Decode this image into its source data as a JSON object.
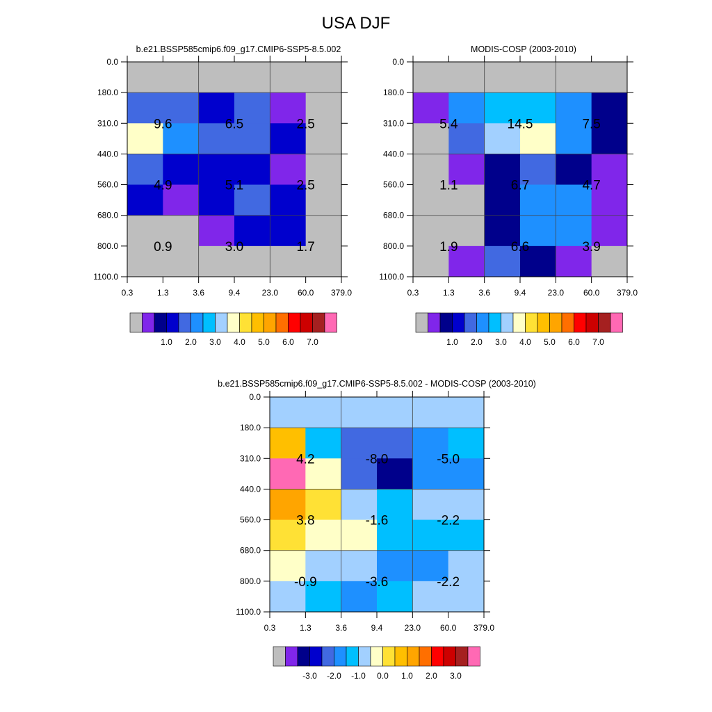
{
  "title": "USA DJF",
  "chart_data": [
    {
      "type": "heatmap",
      "title": "b.e21.BSSP585cmip6.f09_g17.CMIP6-SSP5-8.5.002",
      "x_tick_labels": [
        "0.3",
        "1.3",
        "3.6",
        "9.4",
        "23.0",
        "60.0",
        "379.0"
      ],
      "y_tick_labels": [
        "0.0",
        "180.0",
        "310.0",
        "440.0",
        "560.0",
        "680.0",
        "800.0",
        "1100.0"
      ],
      "cell_color_index": [
        [
          0,
          0,
          0,
          0,
          0,
          0
        ],
        [
          4,
          4,
          3,
          4,
          1,
          0
        ],
        [
          8,
          5,
          4,
          4,
          3,
          0
        ],
        [
          4,
          3,
          3,
          3,
          1,
          0
        ],
        [
          3,
          1,
          3,
          4,
          3,
          0
        ],
        [
          0,
          0,
          1,
          3,
          3,
          0
        ],
        [
          0,
          0,
          0,
          0,
          0,
          0
        ]
      ],
      "box_labels": [
        "9.6",
        "6.5",
        "2.5",
        "4.9",
        "5.1",
        "2.5",
        "0.9",
        "3.0",
        "1.7"
      ],
      "colorbar": {
        "colors": [
          "#bebebe",
          "#8026ea",
          "#00008b",
          "#0000cd",
          "#4169e1",
          "#1e90ff",
          "#00bfff",
          "#a2d0ff",
          "#ffffc8",
          "#ffe135",
          "#ffbf00",
          "#ffa500",
          "#ff6f00",
          "#ff0000",
          "#cd0000",
          "#a52020",
          "#ff69b4"
        ],
        "labels": [
          "1.0",
          "2.0",
          "3.0",
          "4.0",
          "5.0",
          "6.0",
          "7.0"
        ]
      }
    },
    {
      "type": "heatmap",
      "title": "MODIS-COSP (2003-2010)",
      "x_tick_labels": [
        "0.3",
        "1.3",
        "3.6",
        "9.4",
        "23.0",
        "60.0",
        "379.0"
      ],
      "y_tick_labels": [
        "0.0",
        "180.0",
        "310.0",
        "440.0",
        "560.0",
        "680.0",
        "800.0",
        "1100.0"
      ],
      "cell_color_index": [
        [
          0,
          0,
          0,
          0,
          0,
          0
        ],
        [
          1,
          5,
          6,
          6,
          5,
          2
        ],
        [
          0,
          4,
          7,
          8,
          5,
          2
        ],
        [
          0,
          1,
          2,
          4,
          2,
          1
        ],
        [
          0,
          0,
          2,
          5,
          5,
          1
        ],
        [
          0,
          0,
          2,
          5,
          5,
          1
        ],
        [
          0,
          1,
          4,
          2,
          1,
          0
        ]
      ],
      "box_labels": [
        "5.4",
        "14.5",
        "7.5",
        "1.1",
        "6.7",
        "4.7",
        "1.9",
        "6.6",
        "3.9"
      ],
      "colorbar": {
        "colors": [
          "#bebebe",
          "#8026ea",
          "#00008b",
          "#0000cd",
          "#4169e1",
          "#1e90ff",
          "#00bfff",
          "#a2d0ff",
          "#ffffc8",
          "#ffe135",
          "#ffbf00",
          "#ffa500",
          "#ff6f00",
          "#ff0000",
          "#cd0000",
          "#a52020",
          "#ff69b4"
        ],
        "labels": [
          "1.0",
          "2.0",
          "3.0",
          "4.0",
          "5.0",
          "6.0",
          "7.0"
        ]
      }
    },
    {
      "type": "heatmap",
      "title": "b.e21.BSSP585cmip6.f09_g17.CMIP6-SSP5-8.5.002 - MODIS-COSP (2003-2010)",
      "x_tick_labels": [
        "0.3",
        "1.3",
        "3.6",
        "9.4",
        "23.0",
        "60.0",
        "379.0"
      ],
      "y_tick_labels": [
        "0.0",
        "180.0",
        "310.0",
        "440.0",
        "560.0",
        "680.0",
        "800.0",
        "1100.0"
      ],
      "cell_color_index": [
        [
          7,
          7,
          7,
          7,
          7,
          7
        ],
        [
          10,
          6,
          4,
          4,
          5,
          6
        ],
        [
          16,
          8,
          4,
          2,
          5,
          5
        ],
        [
          11,
          9,
          7,
          6,
          7,
          7
        ],
        [
          9,
          8,
          8,
          6,
          6,
          6
        ],
        [
          8,
          7,
          7,
          5,
          5,
          7
        ],
        [
          7,
          6,
          5,
          6,
          7,
          7
        ]
      ],
      "box_labels": [
        "4.2",
        "-8.0",
        "-5.0",
        "3.8",
        "-1.6",
        "-2.2",
        "-0.9",
        "-3.6",
        "-2.2"
      ],
      "colorbar": {
        "colors": [
          "#bebebe",
          "#8026ea",
          "#00008b",
          "#0000cd",
          "#4169e1",
          "#1e90ff",
          "#00bfff",
          "#a2d0ff",
          "#ffffc8",
          "#ffe135",
          "#ffbf00",
          "#ffa500",
          "#ff6f00",
          "#ff0000",
          "#cd0000",
          "#a52020",
          "#ff69b4"
        ],
        "labels": [
          "-3.0",
          "-2.0",
          "-1.0",
          "0.0",
          "1.0",
          "2.0",
          "3.0"
        ]
      }
    }
  ]
}
